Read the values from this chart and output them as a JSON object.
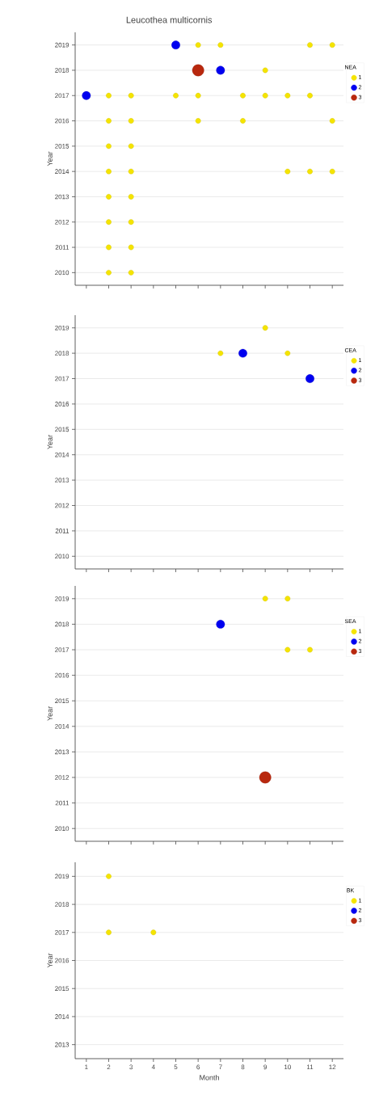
{
  "chart_data": [
    {
      "type": "scatter",
      "title": "Leucothea multicornis",
      "ylabel": "Year",
      "legend_title": "NEA",
      "legend": "right",
      "grid": "y",
      "marker": "circle",
      "tick_labels": "y",
      "xlim": [
        0.5,
        12.5
      ],
      "xticks": [
        1,
        2,
        3,
        4,
        5,
        6,
        7,
        8,
        9,
        10,
        11,
        12
      ],
      "ylim": [
        2009.5,
        2019.5
      ],
      "yticks": [
        2010,
        2011,
        2012,
        2013,
        2014,
        2015,
        2016,
        2017,
        2018,
        2019
      ],
      "series": [
        {
          "name": "1",
          "color": "#f5e400",
          "x": [
            6,
            7,
            11,
            12,
            9,
            2,
            3,
            5,
            6,
            8,
            9,
            10,
            11,
            2,
            3,
            6,
            8,
            12,
            2,
            3,
            2,
            3,
            10,
            11,
            12,
            2,
            3,
            2,
            3,
            2,
            3,
            2,
            3
          ],
          "values": [
            2019,
            2019,
            2019,
            2019,
            2018,
            2017,
            2017,
            2017,
            2017,
            2017,
            2017,
            2017,
            2017,
            2016,
            2016,
            2016,
            2016,
            2016,
            2015,
            2015,
            2014,
            2014,
            2014,
            2014,
            2014,
            2013,
            2013,
            2012,
            2012,
            2011,
            2011,
            2010,
            2010
          ]
        },
        {
          "name": "2",
          "color": "#0000f0",
          "x": [
            5,
            7,
            1
          ],
          "values": [
            2019,
            2018,
            2017
          ]
        },
        {
          "name": "3",
          "color": "#b8280e",
          "x": [
            6
          ],
          "values": [
            2018
          ]
        }
      ]
    },
    {
      "type": "scatter",
      "ylabel": "Year",
      "legend_title": "CEA",
      "legend": "right",
      "grid": "y",
      "marker": "circle",
      "tick_labels": "y",
      "xlim": [
        0.5,
        12.5
      ],
      "xticks": [
        1,
        2,
        3,
        4,
        5,
        6,
        7,
        8,
        9,
        10,
        11,
        12
      ],
      "ylim": [
        2009.5,
        2019.5
      ],
      "yticks": [
        2010,
        2011,
        2012,
        2013,
        2014,
        2015,
        2016,
        2017,
        2018,
        2019
      ],
      "series": [
        {
          "name": "1",
          "color": "#f5e400",
          "x": [
            9,
            7,
            10
          ],
          "values": [
            2019,
            2018,
            2018
          ]
        },
        {
          "name": "2",
          "color": "#0000f0",
          "x": [
            8,
            11
          ],
          "values": [
            2018,
            2017
          ]
        },
        {
          "name": "3",
          "color": "#b8280e"
        }
      ]
    },
    {
      "type": "scatter",
      "ylabel": "Year",
      "legend_title": "SEA",
      "legend": "right",
      "grid": "y",
      "marker": "circle",
      "tick_labels": "y",
      "xlim": [
        0.5,
        12.5
      ],
      "xticks": [
        1,
        2,
        3,
        4,
        5,
        6,
        7,
        8,
        9,
        10,
        11,
        12
      ],
      "ylim": [
        2009.5,
        2019.5
      ],
      "yticks": [
        2010,
        2011,
        2012,
        2013,
        2014,
        2015,
        2016,
        2017,
        2018,
        2019
      ],
      "series": [
        {
          "name": "1",
          "color": "#f5e400",
          "x": [
            9,
            10,
            10,
            11
          ],
          "values": [
            2019,
            2019,
            2017,
            2017
          ]
        },
        {
          "name": "2",
          "color": "#0000f0",
          "x": [
            7
          ],
          "values": [
            2018
          ]
        },
        {
          "name": "3",
          "color": "#b8280e",
          "x": [
            9
          ],
          "values": [
            2012
          ]
        }
      ]
    },
    {
      "type": "scatter",
      "xlabel": "Month",
      "ylabel": "Year",
      "legend_title": "BK",
      "legend": "right",
      "grid": "y",
      "marker": "circle",
      "xlim": [
        0.5,
        12.5
      ],
      "xticks": [
        1,
        2,
        3,
        4,
        5,
        6,
        7,
        8,
        9,
        10,
        11,
        12
      ],
      "ylim": [
        2012.5,
        2019.5
      ],
      "yticks": [
        2013,
        2014,
        2015,
        2016,
        2017,
        2018,
        2019
      ],
      "series": [
        {
          "name": "1",
          "color": "#f5e400",
          "x": [
            2,
            2,
            4
          ],
          "values": [
            2019,
            2017,
            2017
          ]
        },
        {
          "name": "2",
          "color": "#0000f0"
        },
        {
          "name": "3",
          "color": "#b8280e"
        }
      ]
    }
  ]
}
